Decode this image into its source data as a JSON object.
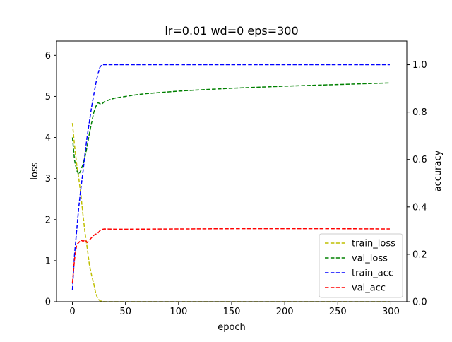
{
  "chart_data": {
    "type": "line",
    "title": "lr=0.01 wd=0 eps=300",
    "xlabel": "epoch",
    "ylabel": "loss",
    "y2label": "accuracy",
    "xlim": [
      -15,
      315
    ],
    "ylim": [
      0,
      6.35
    ],
    "y2lim": [
      0,
      1.1
    ],
    "xticks": [
      0,
      50,
      100,
      150,
      200,
      250,
      300
    ],
    "yticks": [
      0,
      1,
      2,
      3,
      4,
      5,
      6
    ],
    "y2ticks": [
      "0.0",
      "0.2",
      "0.4",
      "0.6",
      "0.8",
      "1.0"
    ],
    "grid": false,
    "legend_position": "lower-right",
    "series": [
      {
        "name": "train_loss",
        "axis": "left",
        "color": "#bfbf00",
        "style": "dashed",
        "x": [
          0,
          2,
          4,
          6,
          8,
          10,
          12,
          14,
          16,
          18,
          20,
          22,
          24,
          26,
          28,
          30,
          50,
          100,
          150,
          200,
          250,
          299
        ],
        "y": [
          4.35,
          3.8,
          3.35,
          3.0,
          2.6,
          2.1,
          1.65,
          1.3,
          0.9,
          0.65,
          0.45,
          0.2,
          0.07,
          0.02,
          0.01,
          0.0,
          0.0,
          0.0,
          0.0,
          0.0,
          0.0,
          0.0
        ]
      },
      {
        "name": "val_loss",
        "axis": "left",
        "color": "#008000",
        "style": "dashed",
        "x": [
          0,
          2,
          4,
          6,
          8,
          10,
          12,
          14,
          16,
          18,
          20,
          22,
          24,
          26,
          28,
          30,
          35,
          40,
          50,
          60,
          70,
          80,
          100,
          120,
          150,
          200,
          250,
          299
        ],
        "y": [
          4.0,
          3.45,
          3.2,
          3.1,
          3.2,
          3.35,
          3.55,
          3.8,
          4.1,
          4.35,
          4.6,
          4.75,
          4.85,
          4.82,
          4.82,
          4.87,
          4.92,
          4.96,
          5.0,
          5.04,
          5.07,
          5.09,
          5.13,
          5.16,
          5.2,
          5.25,
          5.29,
          5.33
        ]
      },
      {
        "name": "train_acc",
        "axis": "right",
        "color": "#0000ff",
        "style": "dashed",
        "x": [
          0,
          2,
          4,
          6,
          8,
          10,
          12,
          14,
          16,
          18,
          20,
          22,
          24,
          26,
          28,
          30,
          50,
          100,
          150,
          200,
          250,
          299
        ],
        "y": [
          0.05,
          0.2,
          0.3,
          0.4,
          0.48,
          0.55,
          0.63,
          0.7,
          0.76,
          0.82,
          0.87,
          0.92,
          0.96,
          0.99,
          1.0,
          1.0,
          1.0,
          1.0,
          1.0,
          1.0,
          1.0,
          1.0
        ]
      },
      {
        "name": "val_acc",
        "axis": "right",
        "color": "#ff0000",
        "style": "dashed",
        "x": [
          0,
          2,
          4,
          6,
          8,
          10,
          12,
          14,
          16,
          18,
          20,
          22,
          24,
          26,
          28,
          30,
          40,
          50,
          100,
          150,
          200,
          250,
          299
        ],
        "y": [
          0.08,
          0.18,
          0.24,
          0.25,
          0.26,
          0.255,
          0.26,
          0.25,
          0.26,
          0.27,
          0.28,
          0.285,
          0.29,
          0.3,
          0.305,
          0.307,
          0.306,
          0.306,
          0.307,
          0.308,
          0.308,
          0.308,
          0.307
        ]
      }
    ]
  }
}
